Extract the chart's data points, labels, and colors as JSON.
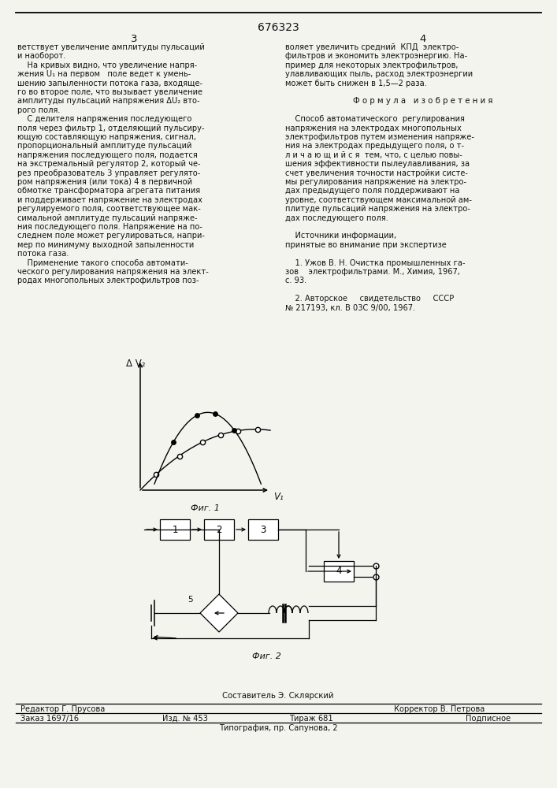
{
  "patent_number": "676323",
  "bg": "#f4f4ef",
  "fg": "#111111",
  "page3": "3",
  "page4": "4",
  "col1": [
    "ветствует увеличение амплитуды пульсаций",
    "и наоборот.",
    "    На кривых видно, что увеличение напря-",
    "жения U₁ на первом   поле ведет к умень-",
    "шению запыленности потока газа, входяще-",
    "го во второе поле, что вызывает увеличение",
    "амплитуды пульсаций напряжения ΔU₂ вто-",
    "рого поля.",
    "    С делителя напряжения последующего",
    "поля через фильтр 1, отделяющий пульсиру-",
    "ющую составляющую напряжения, сигнал,",
    "пропорциональный амплитуде пульсаций",
    "напряжения последующего поля, подается",
    "на экстремальный регулятор 2, который че-",
    "рез преобразователь 3 управляет регулято-",
    "ром напряжения (или тока) 4 в первичной",
    "обмотке трансформатора агрегата питания",
    "и поддерживает напряжение на электродах",
    "регулируемого поля, соответствующее мак-",
    "симальной амплитуде пульсаций напряже-",
    "ния последующего поля. Напряжение на по-",
    "следнем поле может регулироваться, напри-",
    "мер по минимуму выходной запыленности",
    "потока газа.",
    "    Применение такого способа автомати-",
    "ческого регулирования напряжения на элект-",
    "родах многопольных электрофильтров поз-"
  ],
  "col2": [
    "воляет увеличить средний  КПД  электро-",
    "фильтров и экономить электроэнергию. На-",
    "пример для некоторых электрофильтров,",
    "улавливающих пыль, расход электроэнергии",
    "может быть снижен в 1,5—2 раза.",
    "",
    "Ф о р м у л а   и з о б р е т е н и я",
    "",
    "    Способ автоматического  регулирования",
    "напряжения на электродах многопольных",
    "электрофильтров путем изменения напряже-",
    "ния на электродах предыдущего поля, о т-",
    "л и ч а ю щ и й с я  тем, что, с целью повы-",
    "шения эффективности пылеулавливания, за",
    "счет увеличения точности настройки систе-",
    "мы регулирования напряжение на электро-",
    "дах предыдущего поля поддерживают на",
    "уровне, соответствующем максимальной ам-",
    "плитуде пульсаций напряжения на электро-",
    "дах последующего поля.",
    "",
    "    Источники информации,",
    "принятые во внимание при экспертизе",
    "",
    "    1. Ужов В. Н. Очистка промышленных га-",
    "зов    электрофильтрами. М., Химия, 1967,",
    "с. 93.",
    "",
    "    2. Авторское     свидетельство     СССР",
    "№ 217193, кл. В 03С 9/00, 1967."
  ],
  "line5_number": "5",
  "fig1_caption": "Фиг. 1",
  "fig2_caption": "Фиг. 2",
  "ylabel": "Δ V₂",
  "xlabel": "V₁",
  "composer": "Составитель Э. Склярский",
  "editor": "Редактор Г. Прусова",
  "corrector": "Корректор В. Петрова",
  "order": "Заказ 1697/16",
  "izd": "Изд. № 453",
  "tirazh": "Тираж 681",
  "podpisnoe": "Подписное",
  "typography": "Типография, пр. Сапунова, 2"
}
